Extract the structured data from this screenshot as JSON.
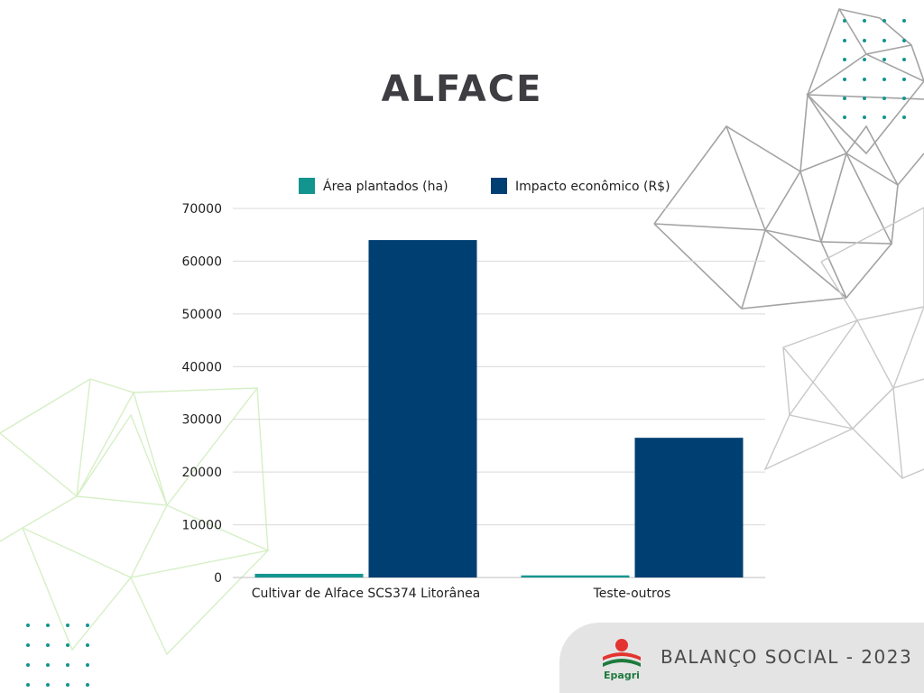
{
  "page": {
    "title": "ALFACE"
  },
  "footer": {
    "text": "BALANÇO SOCIAL - 2023",
    "logo_text": "Epagri"
  },
  "colors": {
    "area": "#13958f",
    "impacto": "#003f72",
    "grid": "#d9d9d9",
    "text": "#1f1f1f",
    "logo_red": "#e3342f",
    "logo_green": "#1e7a3c"
  },
  "icons": [
    "epagri-logo-icon"
  ],
  "chart_data": {
    "type": "bar",
    "categories": [
      "Cultivar de Alface SCS374 Litorânea",
      "Teste-outros"
    ],
    "series": [
      {
        "name": "Área plantados (ha)",
        "values": [
          700,
          400
        ]
      },
      {
        "name": "Impacto econômico (R$)",
        "values": [
          64000,
          26500
        ]
      }
    ],
    "ylim": [
      0,
      70000
    ],
    "yticks": [
      0,
      10000,
      20000,
      30000,
      40000,
      50000,
      60000,
      70000
    ],
    "grid": true,
    "legend": "top"
  }
}
